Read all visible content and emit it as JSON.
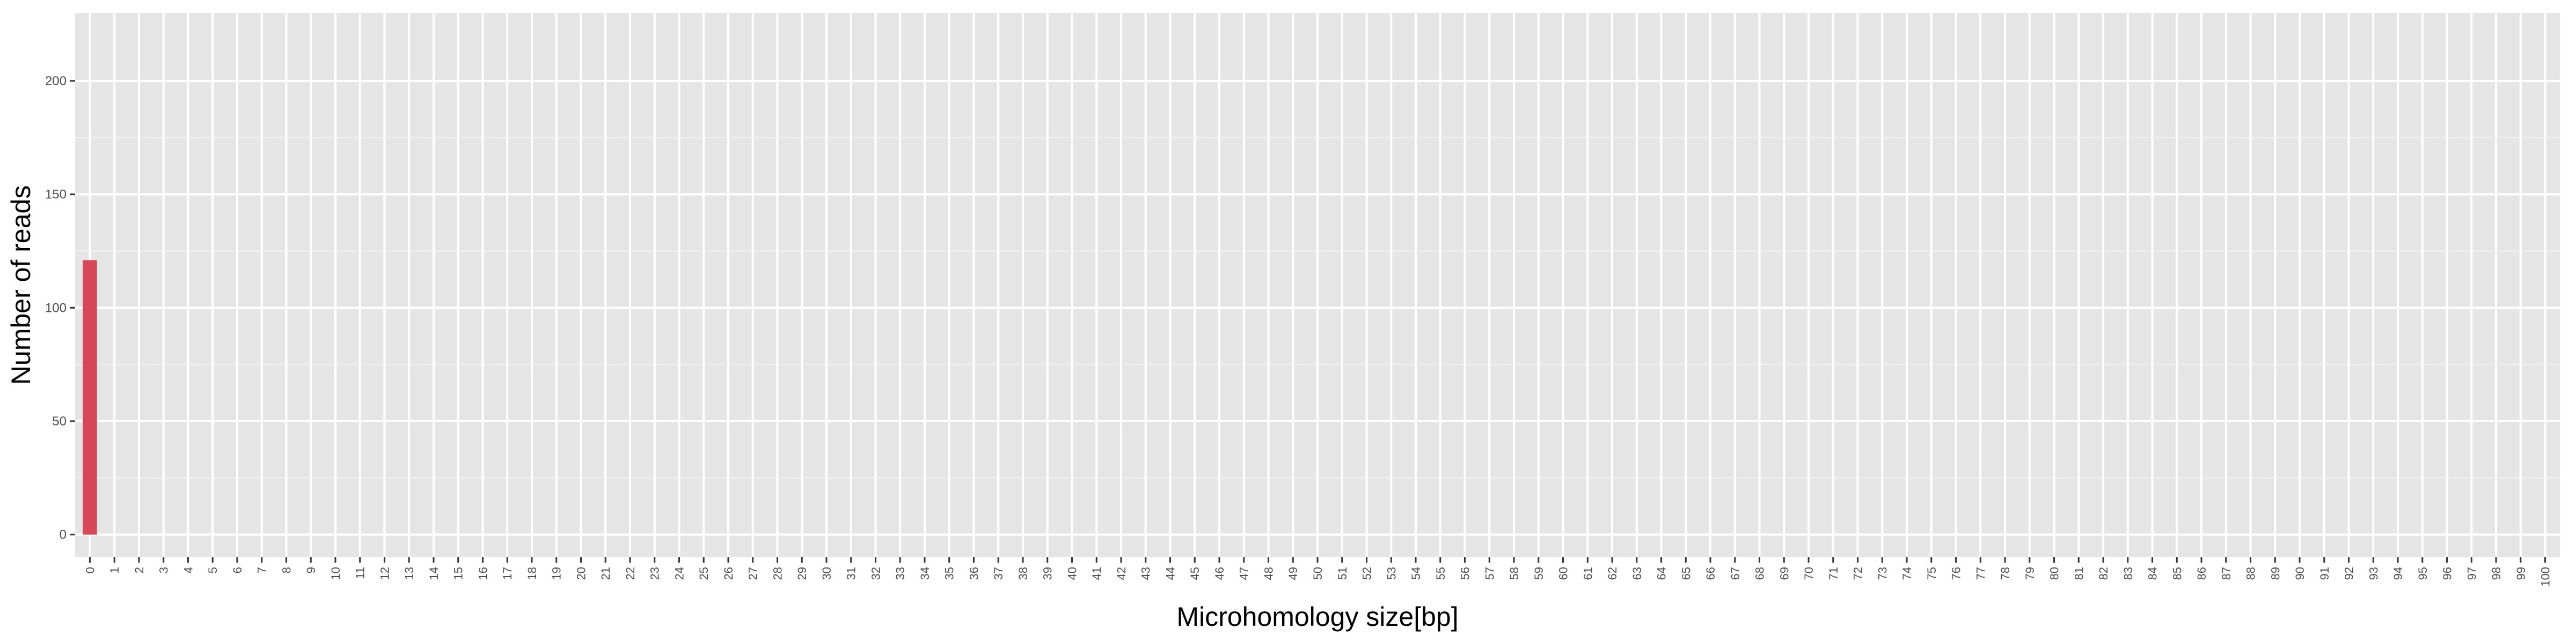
{
  "chart_data": {
    "type": "bar",
    "title": "",
    "xlabel": "Microhomology size[bp]",
    "ylabel": "Number of reads",
    "categories": [
      "0",
      "1",
      "2",
      "3",
      "4",
      "5",
      "6",
      "7",
      "8",
      "9",
      "10",
      "11",
      "12",
      "13",
      "14",
      "15",
      "16",
      "17",
      "18",
      "19",
      "20",
      "21",
      "22",
      "23",
      "24",
      "25",
      "26",
      "27",
      "28",
      "29",
      "30",
      "31",
      "32",
      "33",
      "34",
      "35",
      "36",
      "37",
      "38",
      "39",
      "40",
      "41",
      "42",
      "43",
      "44",
      "45",
      "46",
      "47",
      "48",
      "49",
      "50",
      "51",
      "52",
      "53",
      "54",
      "55",
      "56",
      "57",
      "58",
      "59",
      "60",
      "61",
      "62",
      "63",
      "64",
      "65",
      "66",
      "67",
      "68",
      "69",
      "70",
      "71",
      "72",
      "73",
      "74",
      "75",
      "76",
      "77",
      "78",
      "79",
      "80",
      "81",
      "82",
      "83",
      "84",
      "85",
      "86",
      "87",
      "88",
      "89",
      "90",
      "91",
      "92",
      "93",
      "94",
      "95",
      "96",
      "97",
      "98",
      "99",
      "100"
    ],
    "values": [
      121,
      0,
      0,
      0,
      0,
      0,
      0,
      0,
      0,
      0,
      0,
      0,
      0,
      0,
      0,
      0,
      0,
      0,
      0,
      0,
      0,
      0,
      0,
      0,
      0,
      0,
      0,
      0,
      0,
      0,
      0,
      0,
      0,
      0,
      0,
      0,
      0,
      0,
      0,
      0,
      0,
      0,
      0,
      0,
      0,
      0,
      0,
      0,
      0,
      0,
      0,
      0,
      0,
      0,
      0,
      0,
      0,
      0,
      0,
      0,
      0,
      0,
      0,
      0,
      0,
      0,
      0,
      0,
      0,
      0,
      0,
      0,
      0,
      0,
      0,
      0,
      0,
      0,
      0,
      0,
      0,
      0,
      0,
      0,
      0,
      0,
      0,
      0,
      0,
      0,
      0,
      0,
      0,
      0,
      0,
      0,
      0,
      0,
      0,
      0,
      0
    ],
    "ylim": [
      -10,
      230
    ],
    "yticks": [
      0,
      50,
      100,
      150,
      200
    ],
    "ytick_labels": [
      "0",
      "50",
      "100",
      "150",
      "200"
    ],
    "grid": true,
    "legend": "none",
    "colors": {
      "bar": "#d6475a",
      "panel": "#e5e5e5",
      "grid_major": "#ffffff",
      "grid_minor": "#f2f2f2",
      "tick": "#333333"
    }
  }
}
